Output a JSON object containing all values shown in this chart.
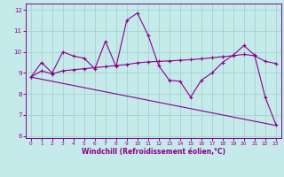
{
  "title": "",
  "xlabel": "Windchill (Refroidissement éolien,°C)",
  "xlim": [
    -0.5,
    23.5
  ],
  "ylim": [
    5.9,
    12.3
  ],
  "yticks": [
    6,
    7,
    8,
    9,
    10,
    11,
    12
  ],
  "xticks": [
    0,
    1,
    2,
    3,
    4,
    5,
    6,
    7,
    8,
    9,
    10,
    11,
    12,
    13,
    14,
    15,
    16,
    17,
    18,
    19,
    20,
    21,
    22,
    23
  ],
  "background_color": "#c5eaea",
  "grid_color": "#a8d0d0",
  "line_color": "#8b008b",
  "series0_x": [
    0,
    1,
    2,
    3,
    4,
    5,
    6,
    7,
    8,
    9,
    10,
    11,
    12,
    13,
    14,
    15,
    16,
    17,
    18,
    19,
    20,
    21,
    22,
    23
  ],
  "series0_y": [
    8.8,
    9.5,
    9.0,
    10.0,
    9.8,
    9.7,
    9.2,
    10.5,
    9.3,
    11.5,
    11.85,
    10.8,
    9.35,
    8.65,
    8.6,
    7.85,
    8.65,
    9.0,
    9.5,
    9.85,
    10.3,
    9.85,
    7.85,
    6.55
  ],
  "series1_x": [
    0,
    1,
    2,
    3,
    4,
    5,
    6,
    7,
    8,
    9,
    10,
    11,
    12,
    13,
    14,
    15,
    16,
    17,
    18,
    19,
    20,
    21,
    22,
    23
  ],
  "series1_y": [
    8.8,
    9.1,
    8.95,
    9.1,
    9.15,
    9.2,
    9.25,
    9.3,
    9.35,
    9.4,
    9.48,
    9.52,
    9.55,
    9.57,
    9.6,
    9.63,
    9.67,
    9.72,
    9.77,
    9.82,
    9.88,
    9.82,
    9.55,
    9.45
  ],
  "series2_x": [
    0,
    23
  ],
  "series2_y": [
    8.8,
    6.5
  ]
}
